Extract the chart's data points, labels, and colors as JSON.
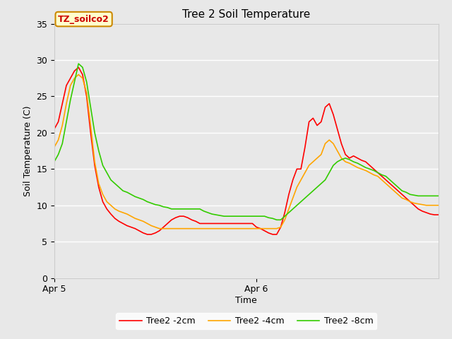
{
  "title": "Tree 2 Soil Temperature",
  "ylabel": "Soil Temperature (C)",
  "xlabel": "Time",
  "annotation": "TZ_soilco2",
  "ylim": [
    0,
    35
  ],
  "xlim": [
    0,
    95
  ],
  "xtick_labels": [
    "Apr 5",
    "Apr 6"
  ],
  "xtick_positions": [
    0,
    50
  ],
  "ytick_positions": [
    0,
    5,
    10,
    15,
    20,
    25,
    30,
    35
  ],
  "bg_color": "#e8e8e8",
  "grid_color": "#ffffff",
  "legend_labels": [
    "Tree2 -2cm",
    "Tree2 -4cm",
    "Tree2 -8cm"
  ],
  "line_colors": [
    "#ff0000",
    "#ffa500",
    "#33cc00"
  ],
  "title_fontsize": 11,
  "label_fontsize": 9,
  "tick_fontsize": 9,
  "series_red": [
    20.5,
    21.5,
    24.0,
    26.5,
    27.5,
    28.5,
    29.0,
    28.0,
    25.0,
    20.0,
    15.5,
    12.5,
    10.5,
    9.5,
    8.8,
    8.2,
    7.8,
    7.5,
    7.2,
    7.0,
    6.8,
    6.5,
    6.2,
    6.0,
    6.0,
    6.2,
    6.5,
    7.0,
    7.5,
    8.0,
    8.3,
    8.5,
    8.5,
    8.3,
    8.0,
    7.8,
    7.5,
    7.5,
    7.5,
    7.5,
    7.5,
    7.5,
    7.5,
    7.5,
    7.5,
    7.5,
    7.5,
    7.5,
    7.5,
    7.5,
    7.0,
    6.8,
    6.5,
    6.2,
    6.0,
    6.0,
    7.0,
    9.0,
    11.5,
    13.5,
    15.0,
    15.0,
    18.0,
    21.5,
    22.0,
    21.0,
    21.5,
    23.5,
    24.0,
    22.5,
    20.5,
    18.5,
    17.0,
    16.5,
    16.8,
    16.5,
    16.2,
    16.0,
    15.5,
    15.0,
    14.5,
    14.0,
    13.5,
    13.0,
    12.5,
    12.0,
    11.5,
    11.0,
    10.5,
    10.0,
    9.5,
    9.2,
    9.0,
    8.8,
    8.7,
    8.7
  ],
  "series_orange": [
    18.0,
    19.0,
    21.0,
    24.0,
    26.5,
    27.5,
    28.0,
    27.5,
    25.5,
    21.0,
    16.0,
    13.0,
    11.5,
    10.5,
    10.0,
    9.5,
    9.2,
    9.0,
    8.8,
    8.5,
    8.2,
    8.0,
    7.8,
    7.5,
    7.2,
    7.0,
    6.8,
    6.8,
    6.8,
    6.8,
    6.8,
    6.8,
    6.8,
    6.8,
    6.8,
    6.8,
    6.8,
    6.8,
    6.8,
    6.8,
    6.8,
    6.8,
    6.8,
    6.8,
    6.8,
    6.8,
    6.8,
    6.8,
    6.8,
    6.8,
    6.8,
    6.8,
    6.8,
    6.8,
    6.8,
    6.8,
    7.0,
    8.0,
    9.5,
    11.0,
    12.5,
    13.5,
    14.5,
    15.5,
    16.0,
    16.5,
    17.0,
    18.5,
    19.0,
    18.5,
    17.5,
    16.5,
    16.0,
    15.8,
    15.5,
    15.2,
    15.0,
    14.8,
    14.5,
    14.2,
    14.0,
    13.5,
    13.0,
    12.5,
    12.0,
    11.5,
    11.0,
    10.8,
    10.5,
    10.3,
    10.2,
    10.1,
    10.0,
    10.0,
    10.0,
    10.0
  ],
  "series_green": [
    16.0,
    17.0,
    18.5,
    21.5,
    24.5,
    27.0,
    29.5,
    29.0,
    27.0,
    23.5,
    20.0,
    17.5,
    15.5,
    14.5,
    13.5,
    13.0,
    12.5,
    12.0,
    11.8,
    11.5,
    11.2,
    11.0,
    10.8,
    10.5,
    10.3,
    10.1,
    10.0,
    9.8,
    9.7,
    9.5,
    9.5,
    9.5,
    9.5,
    9.5,
    9.5,
    9.5,
    9.5,
    9.2,
    9.0,
    8.8,
    8.7,
    8.6,
    8.5,
    8.5,
    8.5,
    8.5,
    8.5,
    8.5,
    8.5,
    8.5,
    8.5,
    8.5,
    8.5,
    8.3,
    8.2,
    8.0,
    8.0,
    8.5,
    9.0,
    9.5,
    10.0,
    10.5,
    11.0,
    11.5,
    12.0,
    12.5,
    13.0,
    13.5,
    14.5,
    15.5,
    16.0,
    16.3,
    16.5,
    16.3,
    16.0,
    15.8,
    15.5,
    15.2,
    15.0,
    14.8,
    14.5,
    14.2,
    14.0,
    13.5,
    13.0,
    12.5,
    12.0,
    11.8,
    11.5,
    11.4,
    11.3,
    11.3,
    11.3,
    11.3,
    11.3,
    11.3
  ]
}
